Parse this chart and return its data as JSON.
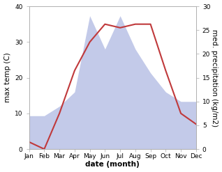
{
  "months": [
    "Jan",
    "Feb",
    "Mar",
    "Apr",
    "May",
    "Jun",
    "Jul",
    "Aug",
    "Sep",
    "Oct",
    "Nov",
    "Dec"
  ],
  "temperature": [
    2,
    0,
    10,
    22,
    30,
    35,
    34,
    35,
    35,
    22,
    10,
    7
  ],
  "precipitation": [
    7,
    7,
    9,
    12,
    28,
    21,
    28,
    21,
    16,
    12,
    10,
    10
  ],
  "temp_ylim": [
    0,
    40
  ],
  "precip_ylim": [
    0,
    30
  ],
  "xlabel": "date (month)",
  "ylabel_left": "max temp (C)",
  "ylabel_right": "med. precipitation (kg/m2)",
  "line_color": "#c0393b",
  "fill_color": "#aab4e0",
  "fill_alpha": 0.7,
  "background_color": "#ffffff",
  "label_fontsize": 7.5,
  "tick_fontsize": 6.5
}
